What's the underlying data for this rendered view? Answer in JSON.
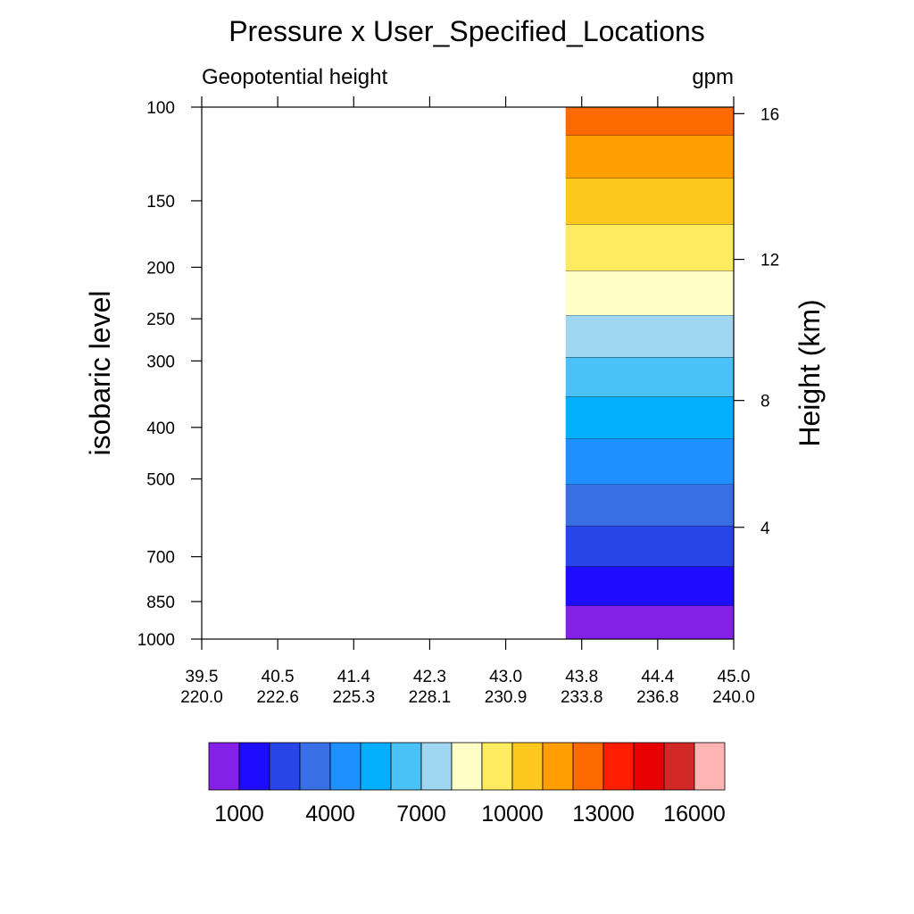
{
  "chart_data": {
    "type": "heatmap",
    "title": "Pressure x User_Specified_Locations",
    "left_subtitle": "Geopotential height",
    "right_subtitle": "gpm",
    "ylabel": "isobaric level",
    "y2label": "Height (km)",
    "y_scale": "log",
    "y_inverted": true,
    "ylim": [
      1000,
      100
    ],
    "y_ticks": [
      "100",
      "150",
      "200",
      "250",
      "300",
      "400",
      "500",
      "700",
      "850",
      "1000"
    ],
    "y2_ticks": [
      "16",
      "12",
      "8",
      "4"
    ],
    "x_ticks": [
      {
        "lat": "39.5",
        "lon": "220.0"
      },
      {
        "lat": "40.5",
        "lon": "222.6"
      },
      {
        "lat": "41.4",
        "lon": "225.3"
      },
      {
        "lat": "42.3",
        "lon": "228.1"
      },
      {
        "lat": "43.0",
        "lon": "230.9"
      },
      {
        "lat": "43.8",
        "lon": "233.8"
      },
      {
        "lat": "44.4",
        "lon": "236.8"
      },
      {
        "lat": "45.0",
        "lon": "240.0"
      }
    ],
    "data_x_range": [
      "43.8",
      "45.0"
    ],
    "contour_levels": [
      1000,
      2000,
      3000,
      4000,
      5000,
      6000,
      7000,
      8000,
      9000,
      10000,
      11000,
      12000,
      13000,
      14000,
      15000,
      16000
    ],
    "colorbar_labels": [
      "1000",
      "4000",
      "7000",
      "10000",
      "13000",
      "16000"
    ],
    "colors": [
      "#8420E8",
      "#1E0CFF",
      "#2846E8",
      "#3A6EE4",
      "#1E90FF",
      "#04AFFF",
      "#4AC2F7",
      "#A0D6F0",
      "#FFFFC8",
      "#FFEB5F",
      "#FFC81E",
      "#FF9E00",
      "#FF6A00",
      "#FF1E00",
      "#E60000",
      "#D22828",
      "#FFB4B4"
    ],
    "band_pressures": [
      1000,
      865,
      730,
      612,
      512,
      420,
      350,
      295,
      246,
      203,
      166,
      136,
      113,
      100
    ]
  }
}
